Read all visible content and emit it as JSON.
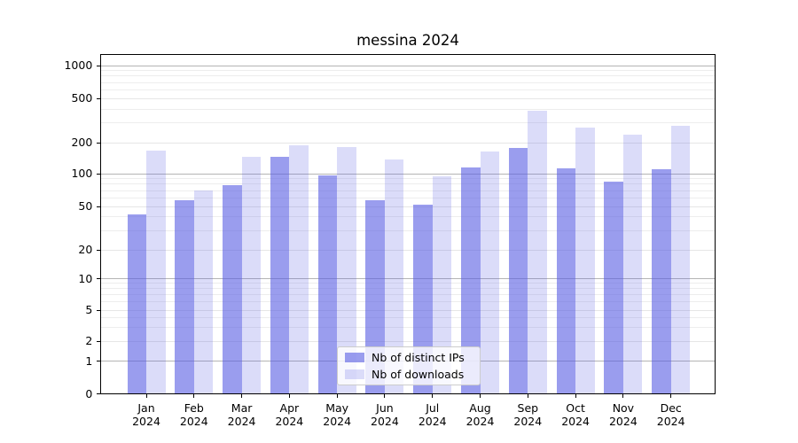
{
  "title": "messina 2024",
  "legend": {
    "items": [
      {
        "label": "Nb of distinct IPs",
        "series_key": "ips"
      },
      {
        "label": "Nb of downloads",
        "series_key": "downloads"
      }
    ]
  },
  "colors": {
    "bar_base": "#565BE3",
    "ips_fill": "rgba(86,91,227,0.60)",
    "downloads_fill": "rgba(86,91,227,0.21)",
    "major_grid": "#b4b4b4",
    "minor_grid": "#ededed",
    "axis": "#000000"
  },
  "chart_data": {
    "type": "bar",
    "title": "messina 2024",
    "xlabel": "",
    "ylabel": "",
    "year_label": "2024",
    "categories": [
      "Jan 2024",
      "Feb 2024",
      "Mar 2024",
      "Apr 2024",
      "May 2024",
      "Jun 2024",
      "Jul 2024",
      "Aug 2024",
      "Sep 2024",
      "Oct 2024",
      "Nov 2024",
      "Dec 2024"
    ],
    "months": [
      "Jan",
      "Feb",
      "Mar",
      "Apr",
      "May",
      "Jun",
      "Jul",
      "Aug",
      "Sep",
      "Oct",
      "Nov",
      "Dec"
    ],
    "series": [
      {
        "name": "Nb of distinct IPs",
        "values": [
          42,
          57,
          78,
          146,
          97,
          57,
          52,
          114,
          177,
          113,
          85,
          110
        ]
      },
      {
        "name": "Nb of downloads",
        "values": [
          168,
          70,
          145,
          188,
          180,
          136,
          94,
          164,
          390,
          272,
          237,
          284
        ]
      }
    ],
    "yscale": "symlog",
    "yticks": [
      0,
      1,
      2,
      5,
      10,
      20,
      50,
      100,
      200,
      500,
      1000
    ],
    "ylim": [
      0,
      1300
    ],
    "grid": true,
    "legend_position": "lower center"
  }
}
